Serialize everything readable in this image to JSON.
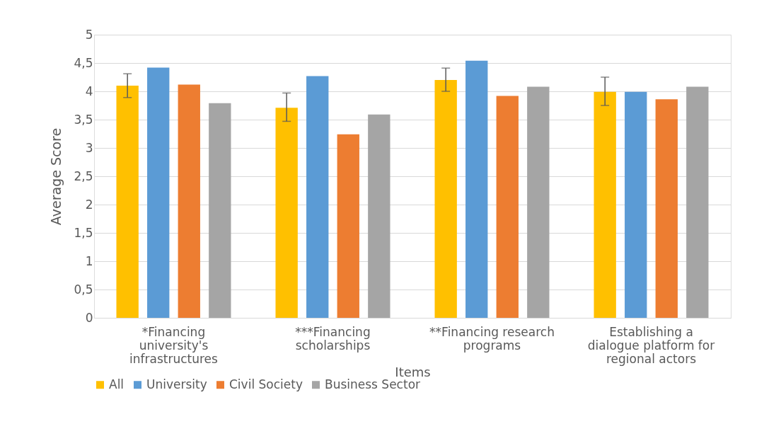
{
  "chart_data": {
    "type": "bar",
    "xlabel": "Items",
    "ylabel": "Average Score",
    "categories": [
      "*Financing university's infrastructures",
      "***Financing scholarships",
      "**Financing research programs",
      "Establishing a dialogue platform for regional actors"
    ],
    "series": [
      {
        "name": "All",
        "color": "#ffc000",
        "values": [
          4.1,
          3.71,
          4.2,
          3.99
        ],
        "errors": [
          [
            3.89,
            4.31
          ],
          [
            3.47,
            3.97
          ],
          [
            4.0,
            4.41
          ],
          [
            3.75,
            4.25
          ]
        ]
      },
      {
        "name": "University",
        "color": "#5b9bd5",
        "values": [
          4.42,
          4.27,
          4.54,
          3.99
        ]
      },
      {
        "name": "Civil Society",
        "color": "#ed7d31",
        "values": [
          4.12,
          3.24,
          3.92,
          3.86
        ]
      },
      {
        "name": "Business Sector",
        "color": "#a5a5a5",
        "values": [
          3.79,
          3.59,
          4.08,
          4.08
        ]
      }
    ],
    "ylim": [
      0,
      5
    ],
    "yticks": [
      0,
      {
        "value": 0.5,
        "label": "0,5"
      },
      1,
      {
        "value": 1.5,
        "label": "1,5"
      },
      2,
      {
        "value": 2.5,
        "label": "2,5"
      },
      3,
      {
        "value": 3.5,
        "label": "3,5"
      },
      4,
      {
        "value": 4.5,
        "label": "4,5"
      },
      5
    ],
    "grid": "y",
    "legend": "bottom"
  }
}
